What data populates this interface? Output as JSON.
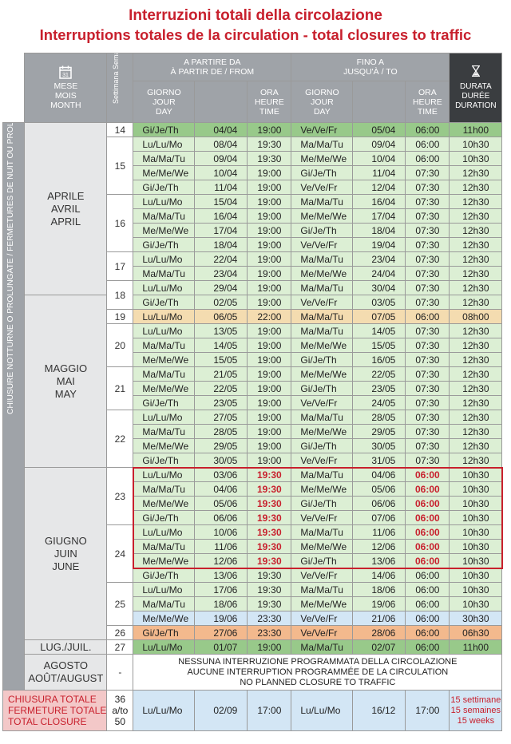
{
  "title_it": "Interruzioni totali della circolazione",
  "title_fr_en": "Interruptions totales de la circulation - total closures to traffic",
  "header": {
    "month": [
      "MESE",
      "MOIS",
      "MONTH"
    ],
    "week": "Settimana Semaine - Week",
    "from_group": [
      "A PARTIRE DA",
      "À PARTIR DE / FROM"
    ],
    "to_group": [
      "FINO A",
      "JUSQU'À / TO"
    ],
    "day": [
      "GIORNO",
      "JOUR",
      "DAY"
    ],
    "time": [
      "ORA",
      "HEURE",
      "TIME"
    ],
    "duration": [
      "DURATA",
      "DURÉE",
      "DURATION"
    ]
  },
  "side_label": "CHIUSURE NOTTURNE O PROLUNGATE / FERMETURES DE NUIT OU PROLONGÉES / NIGHTS OR EXTENDED CLOSURES",
  "months": {
    "april": [
      "APRILE",
      "AVRIL",
      "APRIL"
    ],
    "may": [
      "MAGGIO",
      "MAI",
      "MAY"
    ],
    "june": [
      "GIUGNO",
      "JUIN",
      "JUNE"
    ],
    "july": "LUG./JUIL.",
    "august": [
      "AGOSTO",
      "AOÛT/AUGUST"
    ]
  },
  "rows": [
    {
      "week": "14",
      "from_day": "Gi/Je/Th",
      "from_date": "04/04",
      "from_time": "19:00",
      "to_day": "Ve/Ve/Fr",
      "to_date": "05/04",
      "to_time": "06:00",
      "duration": "11h00"
    },
    {
      "week": "15",
      "from_day": "Lu/Lu/Mo",
      "from_date": "08/04",
      "from_time": "19:30",
      "to_day": "Ma/Ma/Tu",
      "to_date": "09/04",
      "to_time": "06:00",
      "duration": "10h30"
    },
    {
      "week": "",
      "from_day": "Ma/Ma/Tu",
      "from_date": "09/04",
      "from_time": "19:30",
      "to_day": "Me/Me/We",
      "to_date": "10/04",
      "to_time": "06:00",
      "duration": "10h30"
    },
    {
      "week": "",
      "from_day": "Me/Me/We",
      "from_date": "10/04",
      "from_time": "19:00",
      "to_day": "Gi/Je/Th",
      "to_date": "11/04",
      "to_time": "07:30",
      "duration": "12h30"
    },
    {
      "week": "",
      "from_day": "Gi/Je/Th",
      "from_date": "11/04",
      "from_time": "19:00",
      "to_day": "Ve/Ve/Fr",
      "to_date": "12/04",
      "to_time": "07:30",
      "duration": "12h30"
    },
    {
      "week": "16",
      "from_day": "Lu/Lu/Mo",
      "from_date": "15/04",
      "from_time": "19:00",
      "to_day": "Ma/Ma/Tu",
      "to_date": "16/04",
      "to_time": "07:30",
      "duration": "12h30"
    },
    {
      "week": "",
      "from_day": "Ma/Ma/Tu",
      "from_date": "16/04",
      "from_time": "19:00",
      "to_day": "Me/Me/We",
      "to_date": "17/04",
      "to_time": "07:30",
      "duration": "12h30"
    },
    {
      "week": "",
      "from_day": "Me/Me/We",
      "from_date": "17/04",
      "from_time": "19:00",
      "to_day": "Gi/Je/Th",
      "to_date": "18/04",
      "to_time": "07:30",
      "duration": "12h30"
    },
    {
      "week": "",
      "from_day": "Gi/Je/Th",
      "from_date": "18/04",
      "from_time": "19:00",
      "to_day": "Ve/Ve/Fr",
      "to_date": "19/04",
      "to_time": "07:30",
      "duration": "12h30"
    },
    {
      "week": "17",
      "from_day": "Lu/Lu/Mo",
      "from_date": "22/04",
      "from_time": "19:00",
      "to_day": "Ma/Ma/Tu",
      "to_date": "23/04",
      "to_time": "07:30",
      "duration": "12h30"
    },
    {
      "week": "",
      "from_day": "Ma/Ma/Tu",
      "from_date": "23/04",
      "from_time": "19:00",
      "to_day": "Me/Me/We",
      "to_date": "24/04",
      "to_time": "07:30",
      "duration": "12h30"
    },
    {
      "week": "18",
      "from_day": "Lu/Lu/Mo",
      "from_date": "29/04",
      "from_time": "19:00",
      "to_day": "Ma/Ma/Tu",
      "to_date": "30/04",
      "to_time": "07:30",
      "duration": "12h30"
    },
    {
      "week": "",
      "from_day": "Gi/Je/Th",
      "from_date": "02/05",
      "from_time": "19:00",
      "to_day": "Ve/Ve/Fr",
      "to_date": "03/05",
      "to_time": "07:30",
      "duration": "12h30"
    },
    {
      "week": "19",
      "from_day": "Lu/Lu/Mo",
      "from_date": "06/05",
      "from_time": "22:00",
      "to_day": "Ma/Ma/Tu",
      "to_date": "07/05",
      "to_time": "06:00",
      "duration": "08h00"
    },
    {
      "week": "20",
      "from_day": "Lu/Lu/Mo",
      "from_date": "13/05",
      "from_time": "19:00",
      "to_day": "Ma/Ma/Tu",
      "to_date": "14/05",
      "to_time": "07:30",
      "duration": "12h30"
    },
    {
      "week": "",
      "from_day": "Ma/Ma/Tu",
      "from_date": "14/05",
      "from_time": "19:00",
      "to_day": "Me/Me/We",
      "to_date": "15/05",
      "to_time": "07:30",
      "duration": "12h30"
    },
    {
      "week": "",
      "from_day": "Me/Me/We",
      "from_date": "15/05",
      "from_time": "19:00",
      "to_day": "Gi/Je/Th",
      "to_date": "16/05",
      "to_time": "07:30",
      "duration": "12h30"
    },
    {
      "week": "21",
      "from_day": "Ma/Ma/Tu",
      "from_date": "21/05",
      "from_time": "19:00",
      "to_day": "Me/Me/We",
      "to_date": "22/05",
      "to_time": "07:30",
      "duration": "12h30"
    },
    {
      "week": "",
      "from_day": "Me/Me/We",
      "from_date": "22/05",
      "from_time": "19:00",
      "to_day": "Gi/Je/Th",
      "to_date": "23/05",
      "to_time": "07:30",
      "duration": "12h30"
    },
    {
      "week": "",
      "from_day": "Gi/Je/Th",
      "from_date": "23/05",
      "from_time": "19:00",
      "to_day": "Ve/Ve/Fr",
      "to_date": "24/05",
      "to_time": "07:30",
      "duration": "12h30"
    },
    {
      "week": "22",
      "from_day": "Lu/Lu/Mo",
      "from_date": "27/05",
      "from_time": "19:00",
      "to_day": "Ma/Ma/Tu",
      "to_date": "28/05",
      "to_time": "07:30",
      "duration": "12h30"
    },
    {
      "week": "",
      "from_day": "Ma/Ma/Tu",
      "from_date": "28/05",
      "from_time": "19:00",
      "to_day": "Me/Me/We",
      "to_date": "29/05",
      "to_time": "07:30",
      "duration": "12h30"
    },
    {
      "week": "",
      "from_day": "Me/Me/We",
      "from_date": "29/05",
      "from_time": "19:00",
      "to_day": "Gi/Je/Th",
      "to_date": "30/05",
      "to_time": "07:30",
      "duration": "12h30"
    },
    {
      "week": "",
      "from_day": "Gi/Je/Th",
      "from_date": "30/05",
      "from_time": "19:00",
      "to_day": "Ve/Ve/Fr",
      "to_date": "31/05",
      "to_time": "07:30",
      "duration": "12h30"
    },
    {
      "week": "23",
      "from_day": "Lu/Lu/Mo",
      "from_date": "03/06",
      "from_time": "19:30",
      "to_day": "Ma/Ma/Tu",
      "to_date": "04/06",
      "to_time": "06:00",
      "duration": "10h30"
    },
    {
      "week": "",
      "from_day": "Ma/Ma/Tu",
      "from_date": "04/06",
      "from_time": "19:30",
      "to_day": "Me/Me/We",
      "to_date": "05/06",
      "to_time": "06:00",
      "duration": "10h30"
    },
    {
      "week": "",
      "from_day": "Me/Me/We",
      "from_date": "05/06",
      "from_time": "19:30",
      "to_day": "Gi/Je/Th",
      "to_date": "06/06",
      "to_time": "06:00",
      "duration": "10h30"
    },
    {
      "week": "",
      "from_day": "Gi/Je/Th",
      "from_date": "06/06",
      "from_time": "19:30",
      "to_day": "Ve/Ve/Fr",
      "to_date": "07/06",
      "to_time": "06:00",
      "duration": "10h30"
    },
    {
      "week": "24",
      "from_day": "Lu/Lu/Mo",
      "from_date": "10/06",
      "from_time": "19:30",
      "to_day": "Ma/Ma/Tu",
      "to_date": "11/06",
      "to_time": "06:00",
      "duration": "10h30"
    },
    {
      "week": "",
      "from_day": "Ma/Ma/Tu",
      "from_date": "11/06",
      "from_time": "19:30",
      "to_day": "Me/Me/We",
      "to_date": "12/06",
      "to_time": "06:00",
      "duration": "10h30"
    },
    {
      "week": "",
      "from_day": "Me/Me/We",
      "from_date": "12/06",
      "from_time": "19:30",
      "to_day": "Gi/Je/Th",
      "to_date": "13/06",
      "to_time": "06:00",
      "duration": "10h30"
    },
    {
      "week": "",
      "from_day": "Gi/Je/Th",
      "from_date": "13/06",
      "from_time": "19:30",
      "to_day": "Ve/Ve/Fr",
      "to_date": "14/06",
      "to_time": "06:00",
      "duration": "10h30"
    },
    {
      "week": "25",
      "from_day": "Lu/Lu/Mo",
      "from_date": "17/06",
      "from_time": "19:30",
      "to_day": "Ma/Ma/Tu",
      "to_date": "18/06",
      "to_time": "06:00",
      "duration": "10h30"
    },
    {
      "week": "",
      "from_day": "Ma/Ma/Tu",
      "from_date": "18/06",
      "from_time": "19:30",
      "to_day": "Me/Me/We",
      "to_date": "19/06",
      "to_time": "06:00",
      "duration": "10h30"
    },
    {
      "week": "",
      "from_day": "Me/Me/We",
      "from_date": "19/06",
      "from_time": "23:30",
      "to_day": "Ve/Ve/Fr",
      "to_date": "21/06",
      "to_time": "06:00",
      "duration": "30h30"
    },
    {
      "week": "26",
      "from_day": "Gi/Je/Th",
      "from_date": "27/06",
      "from_time": "23:30",
      "to_day": "Ve/Ve/Fr",
      "to_date": "28/06",
      "to_time": "06:00",
      "duration": "06h30"
    },
    {
      "week": "27",
      "from_day": "Lu/Lu/Mo",
      "from_date": "01/07",
      "from_time": "19:00",
      "to_day": "Ma/Ma/Tu",
      "to_date": "02/07",
      "to_time": "06:00",
      "duration": "11h00"
    }
  ],
  "august": {
    "week": "-",
    "note": [
      "NESSUNA INTERRUZIONE PROGRAMMATA DELLA CIRCOLAZIONE",
      "AUCUNE INTERRUPTION PROGRAMMÉE DE LA CIRCULATION",
      "NO PLANNED CLOSURE TO TRAFFIC"
    ]
  },
  "total": {
    "label": [
      "CHIUSURA TOTALE",
      "FERMETURE TOTALE",
      "TOTAL CLOSURE"
    ],
    "weeks": [
      "36",
      "a/to",
      "50"
    ],
    "from_day": "Lu/Lu/Mo",
    "from_date": "02/09",
    "from_time": "17:00",
    "to_day": "Lu/Lu/Mo",
    "to_date": "16/12",
    "to_time": "17:00",
    "duration": [
      "15 settimane",
      "15 semaines",
      "15 weeks"
    ]
  },
  "colors": {
    "title": "#c8202d",
    "header": "#9fa3a8",
    "header_dark": "#3a3d40",
    "light_green": "#dcefd4",
    "dark_green": "#98c98a",
    "orange": "#f4dcb0",
    "light_blue": "#d3e6f5",
    "salmon": "#f3b98d",
    "total_label": "#f3c8c8"
  },
  "icons": {
    "month": "calendar-icon",
    "duration": "hourglass-icon"
  }
}
